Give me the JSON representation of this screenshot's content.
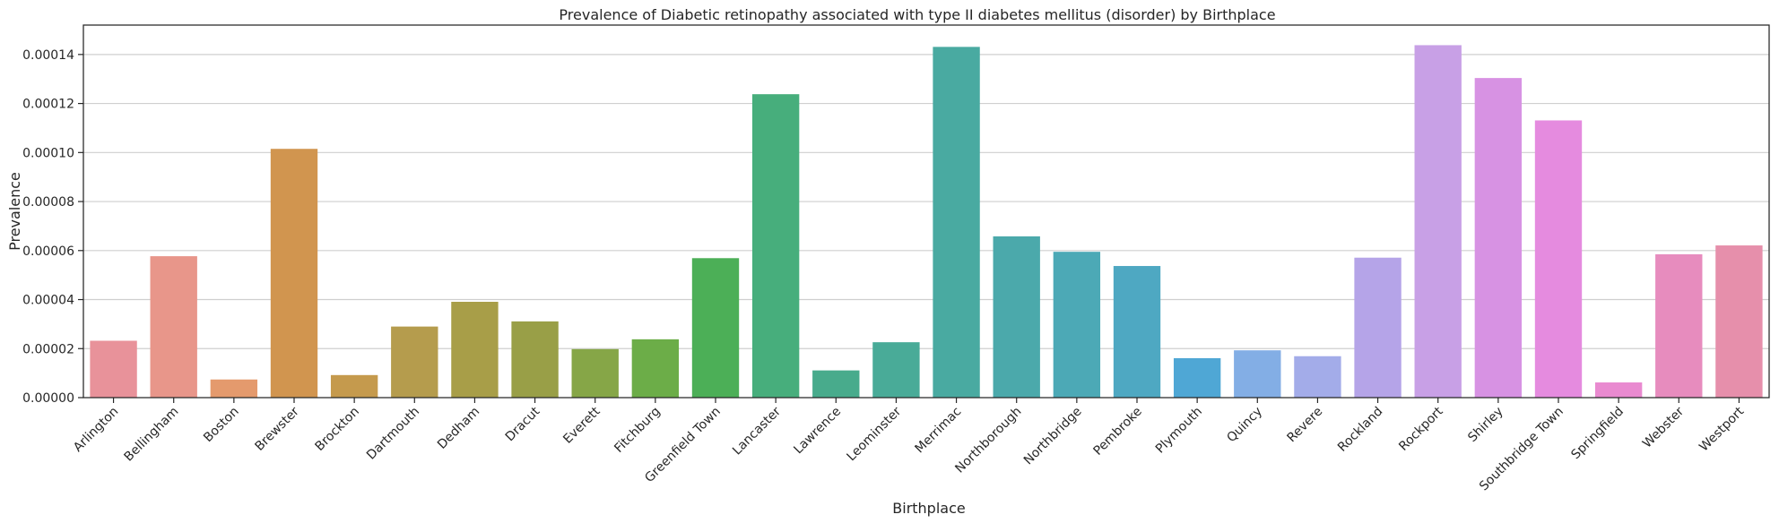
{
  "chart_data": {
    "type": "bar",
    "title": "Prevalence of Diabetic retinopathy associated with type II diabetes mellitus (disorder) by Birthplace",
    "xlabel": "Birthplace",
    "ylabel": "Prevalence",
    "ylim": [
      0,
      0.000152
    ],
    "yticks": [
      "0.00000",
      "0.00002",
      "0.00004",
      "0.00006",
      "0.00008",
      "0.00010",
      "0.00012",
      "0.00014"
    ],
    "grid": "horizontal",
    "categories": [
      "Arlington",
      "Bellingham",
      "Boston",
      "Brewster",
      "Brockton",
      "Dartmouth",
      "Dedham",
      "Dracut",
      "Everett",
      "Fitchburg",
      "Greenfield Town",
      "Lancaster",
      "Lawrence",
      "Leominster",
      "Merrimac",
      "Northborough",
      "Northbridge",
      "Pembroke",
      "Plymouth",
      "Quincy",
      "Revere",
      "Rockland",
      "Rockport",
      "Shirley",
      "Southbridge Town",
      "Springfield",
      "Webster",
      "Westport"
    ],
    "values": [
      2.32e-05,
      5.77e-05,
      7.4e-06,
      0.0001015,
      9.2e-06,
      2.9e-05,
      3.91e-05,
      3.11e-05,
      1.98e-05,
      2.38e-05,
      5.69e-05,
      0.0001238,
      1.11e-05,
      2.26e-05,
      0.0001431,
      6.58e-05,
      5.95e-05,
      5.37e-05,
      1.61e-05,
      1.93e-05,
      1.69e-05,
      5.71e-05,
      0.0001438,
      0.0001304,
      0.0001131,
      6.2e-06,
      5.85e-05,
      6.21e-05
    ],
    "colors": [
      "#e8929a",
      "#e8968a",
      "#e49a6d",
      "#d1954f",
      "#c59a4d",
      "#b59c4d",
      "#a89e48",
      "#999f47",
      "#86a647",
      "#6cad48",
      "#4caf57",
      "#47ae7c",
      "#48ab8c",
      "#49ab98",
      "#49aaa1",
      "#4ba9ab",
      "#4ca9b6",
      "#4ea8c2",
      "#4fa7d5",
      "#83aee5",
      "#a3ace9",
      "#b5a4e8",
      "#c8a0e6",
      "#d792e3",
      "#e58bdf",
      "#e98ad0",
      "#e78cbe",
      "#e68fab"
    ]
  }
}
